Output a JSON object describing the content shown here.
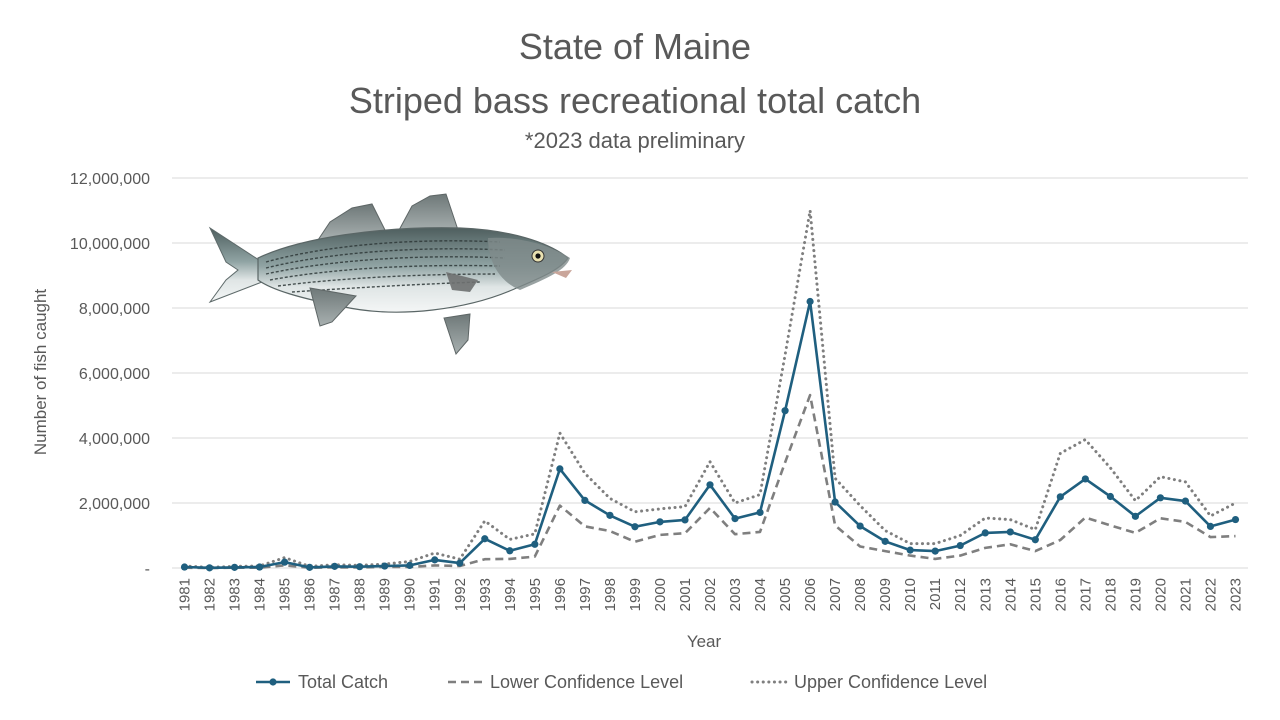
{
  "chart_data": {
    "type": "line",
    "title": "State of Maine",
    "subtitle": "Striped bass recreational total catch",
    "note": "*2023 data preliminary",
    "xlabel": "Year",
    "ylabel": "Number of fish caught",
    "ylim": [
      0,
      12000000
    ],
    "yticks": [
      0,
      2000000,
      4000000,
      6000000,
      8000000,
      10000000,
      12000000
    ],
    "ytick_labels": [
      "-",
      "2,000,000",
      "4,000,000",
      "6,000,000",
      "8,000,000",
      "10,000,000",
      "12,000,000"
    ],
    "grid": true,
    "legend_position": "bottom",
    "x": [
      "1981",
      "1982",
      "1983",
      "1984",
      "1985",
      "1986",
      "1987",
      "1988",
      "1989",
      "1990",
      "1991",
      "1992",
      "1993",
      "1994",
      "1995",
      "1996",
      "1997",
      "1998",
      "1999",
      "2000",
      "2001",
      "2002",
      "2003",
      "2004",
      "2005",
      "2006",
      "2007",
      "2008",
      "2009",
      "2010",
      "2011",
      "2012",
      "2013",
      "2014",
      "2015",
      "2016",
      "2017",
      "2018",
      "2019",
      "2020",
      "2021",
      "2022",
      "2023"
    ],
    "series": [
      {
        "name": "Total Catch",
        "color": "#1f5f7f",
        "style": "solid-markers",
        "values": [
          30000,
          5000,
          20000,
          30000,
          180000,
          20000,
          50000,
          40000,
          60000,
          80000,
          250000,
          150000,
          900000,
          530000,
          730000,
          3050000,
          2080000,
          1620000,
          1270000,
          1420000,
          1480000,
          2560000,
          1520000,
          1710000,
          4840000,
          8200000,
          2030000,
          1290000,
          820000,
          550000,
          520000,
          690000,
          1080000,
          1110000,
          870000,
          2190000,
          2740000,
          2200000,
          1590000,
          2160000,
          2060000,
          1280000,
          1490000
        ]
      },
      {
        "name": "Lower Confidence Level",
        "color": "#7f7f7f",
        "style": "dashed",
        "values": [
          10000,
          0,
          10000,
          10000,
          80000,
          10000,
          20000,
          20000,
          30000,
          30000,
          80000,
          60000,
          270000,
          280000,
          350000,
          1920000,
          1280000,
          1140000,
          810000,
          1020000,
          1070000,
          1850000,
          1040000,
          1110000,
          3250000,
          5320000,
          1310000,
          660000,
          520000,
          380000,
          280000,
          380000,
          620000,
          730000,
          520000,
          860000,
          1550000,
          1310000,
          1080000,
          1530000,
          1420000,
          950000,
          980000
        ]
      },
      {
        "name": "Upper Confidence Level",
        "color": "#7f7f7f",
        "style": "dotted",
        "values": [
          60000,
          20000,
          50000,
          60000,
          320000,
          50000,
          100000,
          80000,
          120000,
          200000,
          460000,
          270000,
          1450000,
          880000,
          1050000,
          4150000,
          2910000,
          2140000,
          1730000,
          1820000,
          1890000,
          3270000,
          2000000,
          2260000,
          6560000,
          11000000,
          2760000,
          1920000,
          1150000,
          750000,
          750000,
          1000000,
          1540000,
          1490000,
          1180000,
          3530000,
          3950000,
          3080000,
          2070000,
          2810000,
          2650000,
          1600000,
          2000000
        ]
      }
    ]
  }
}
